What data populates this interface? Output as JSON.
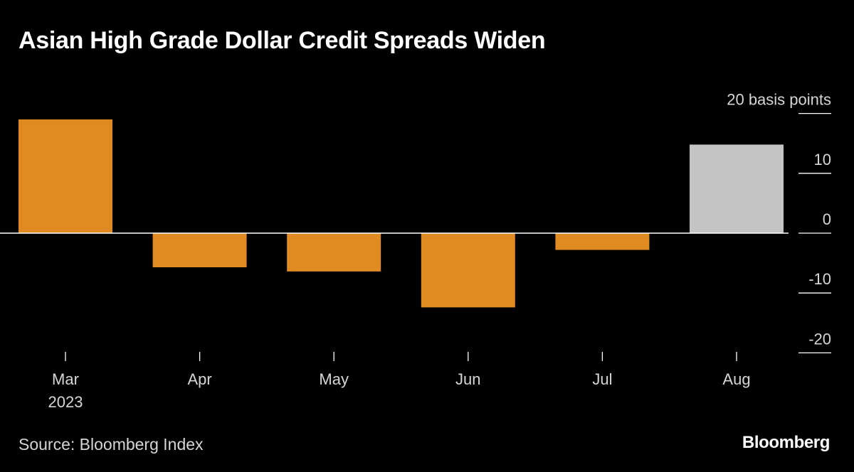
{
  "title": "Asian High Grade Dollar Credit Spreads Widen",
  "source": "Source: Bloomberg Index",
  "brand": "Bloomberg",
  "chart_data": {
    "type": "bar",
    "title": "Asian High Grade Dollar Credit Spreads Widen",
    "categories": [
      "Mar",
      "Apr",
      "May",
      "Jun",
      "Jul",
      "Aug"
    ],
    "category_sublabels": [
      "2023",
      "",
      "",
      "",
      "",
      ""
    ],
    "values": [
      19,
      -5.7,
      -6.4,
      -12.4,
      -2.8,
      14.8
    ],
    "bar_colors": [
      "#e08a22",
      "#e08a22",
      "#e08a22",
      "#e08a22",
      "#e08a22",
      "#c4c4c4"
    ],
    "y_unit_label": "basis points",
    "yticks": [
      20,
      10,
      0,
      -10,
      -20
    ],
    "ylim": [
      -20,
      20
    ],
    "xlabel": "",
    "ylabel": "basis points",
    "legend": "none"
  }
}
